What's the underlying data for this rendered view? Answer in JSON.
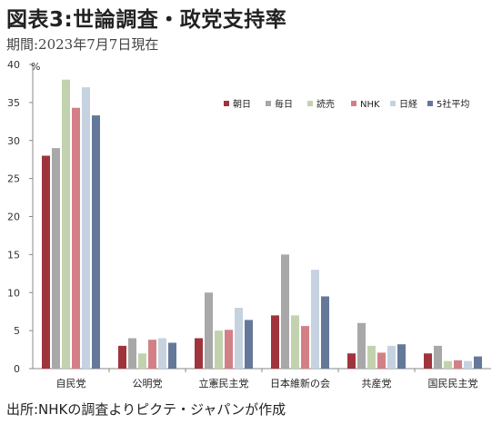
{
  "title": "図表3:世論調査・政党支持率",
  "subtitle": "期間:2023年7月7日現在",
  "source": "出所:NHKの調査よりピクテ・ジャパンが作成",
  "chart_data": {
    "type": "bar",
    "ylabel": "%",
    "ylim": [
      0,
      40
    ],
    "yticks": [
      0,
      5,
      10,
      15,
      20,
      25,
      30,
      35,
      40
    ],
    "grid": false,
    "legend_position": "top-right",
    "categories": [
      "自民党",
      "公明党",
      "立憲民主党",
      "日本維新の会",
      "共産党",
      "国民民主党"
    ],
    "series": [
      {
        "name": "朝日",
        "color": "#a0343c",
        "values": [
          28,
          3,
          4,
          7,
          2,
          2
        ]
      },
      {
        "name": "毎日",
        "color": "#a8a8a8",
        "values": [
          29,
          4,
          10,
          15,
          6,
          3
        ]
      },
      {
        "name": "読売",
        "color": "#c2d2ae",
        "values": [
          38,
          2,
          5,
          7,
          3,
          1
        ]
      },
      {
        "name": "NHK",
        "color": "#d28086",
        "values": [
          34.3,
          3.8,
          5.1,
          5.6,
          2.1,
          1.1
        ]
      },
      {
        "name": "日経",
        "color": "#c6d2e0",
        "values": [
          37,
          4,
          8,
          13,
          3,
          1
        ]
      },
      {
        "name": "5社平均",
        "color": "#64799a",
        "values": [
          33.3,
          3.4,
          6.4,
          9.5,
          3.2,
          1.6
        ]
      }
    ]
  }
}
